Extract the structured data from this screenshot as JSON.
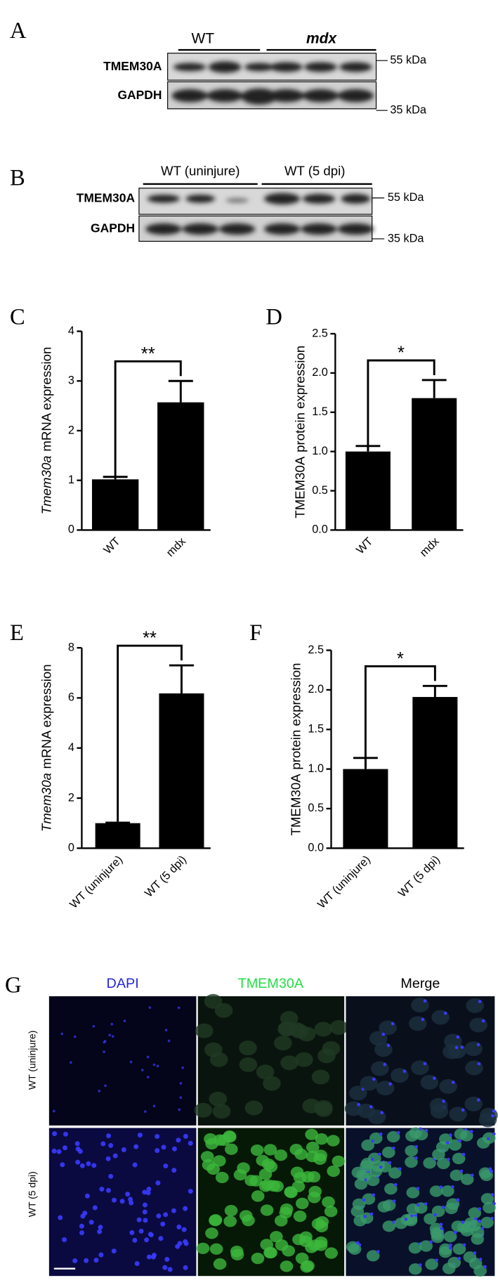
{
  "panels": {
    "a": {
      "label": "A",
      "groups": [
        "WT",
        "mdx"
      ],
      "rows": [
        "TMEM30A",
        "GAPDH"
      ],
      "markers": [
        "55 kDa",
        "35 kDa"
      ]
    },
    "b": {
      "label": "B",
      "groups": [
        "WT (uninjure)",
        "WT (5 dpi)"
      ],
      "rows": [
        "TMEM30A",
        "GAPDH"
      ],
      "markers": [
        "55 kDa",
        "35 kDa"
      ]
    },
    "c": "C",
    "d": "D",
    "e": "E",
    "f": "F",
    "g": {
      "label": "G",
      "channels": [
        "DAPI",
        "TMEM30A",
        "Merge"
      ],
      "conditions": [
        "WT (uninjure)",
        "WT (5 dpi)"
      ]
    }
  },
  "chart_data": [
    {
      "type": "bar",
      "ylabel": [
        "Tmem30a",
        "mRNA expression"
      ],
      "ylabel_italic_first": true,
      "categories": [
        "WT",
        "mdx"
      ],
      "values": [
        1.02,
        2.57
      ],
      "errors": [
        0.05,
        0.43
      ],
      "significance": "**",
      "color": "#000000",
      "ylim": [
        0,
        4
      ],
      "yticks": [
        0,
        1,
        2,
        3,
        4
      ]
    },
    {
      "type": "bar",
      "ylabel": [
        "TMEM30A",
        "protein expression"
      ],
      "ylabel_italic_first": false,
      "categories": [
        "WT",
        "mdx"
      ],
      "values": [
        1.0,
        1.68
      ],
      "errors": [
        0.07,
        0.23
      ],
      "significance": "*",
      "color": "#000000",
      "ylim": [
        0,
        2.5
      ],
      "yticks": [
        {
          "value": 0,
          "label": "0.0"
        },
        0.5,
        {
          "value": 1,
          "label": "1.0"
        },
        1.5,
        {
          "value": 2,
          "label": "2.0"
        },
        2.5
      ]
    },
    {
      "type": "bar",
      "ylabel": [
        "Tmem30a",
        "mRNA expression"
      ],
      "ylabel_italic_first": true,
      "categories": [
        "WT (uninjure)",
        "WT (5 dpi)"
      ],
      "values": [
        1.0,
        6.18
      ],
      "errors": [
        0.02,
        1.12
      ],
      "significance": "**",
      "color": "#000000",
      "ylim": [
        0,
        8
      ],
      "yticks": [
        0,
        2,
        4,
        6,
        8
      ]
    },
    {
      "type": "bar",
      "ylabel": [
        "TMEM30A",
        "protein expression"
      ],
      "ylabel_italic_first": false,
      "categories": [
        "WT (uninjure)",
        "WT (5 dpi)"
      ],
      "values": [
        1.0,
        1.91
      ],
      "errors": [
        0.14,
        0.14
      ],
      "significance": "*",
      "color": "#000000",
      "ylim": [
        0,
        2.5
      ],
      "yticks": [
        {
          "value": 0,
          "label": "0.0"
        },
        0.5,
        {
          "value": 1,
          "label": "1.0"
        },
        1.5,
        {
          "value": 2,
          "label": "2.0"
        },
        2.5
      ]
    }
  ]
}
